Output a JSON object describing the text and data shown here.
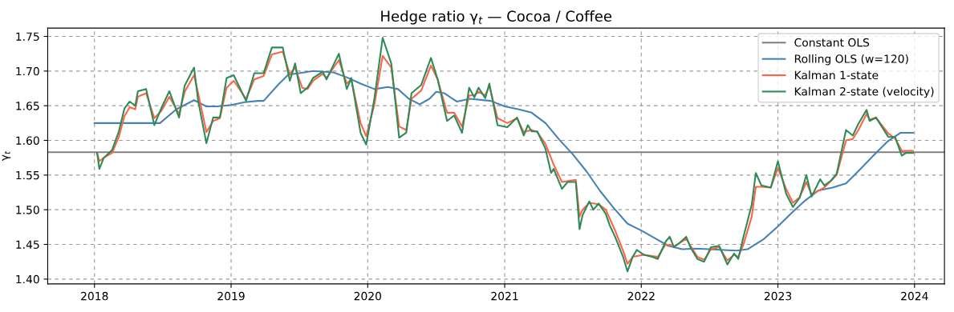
{
  "chart_data": {
    "type": "line",
    "title": "Hedge ratio γ$_{t}$ — Cocoa / Coffee",
    "ylabel": "γ$_{t}$",
    "xlim": [
      "2017-08-29",
      "2024-03-21"
    ],
    "ylim": [
      1.393,
      1.762
    ],
    "xticks": [
      {
        "value": "2018-01-01",
        "label": "2018"
      },
      {
        "value": "2019-01-01",
        "label": "2019"
      },
      {
        "value": "2020-01-01",
        "label": "2020"
      },
      {
        "value": "2021-01-01",
        "label": "2021"
      },
      {
        "value": "2022-01-01",
        "label": "2022"
      },
      {
        "value": "2023-01-01",
        "label": "2023"
      },
      {
        "value": "2024-01-01",
        "label": "2024"
      }
    ],
    "yticks": [
      {
        "value": 1.4,
        "label": "1.40"
      },
      {
        "value": 1.45,
        "label": "1.45"
      },
      {
        "value": 1.5,
        "label": "1.50"
      },
      {
        "value": 1.55,
        "label": "1.55"
      },
      {
        "value": 1.6,
        "label": "1.60"
      },
      {
        "value": 1.65,
        "label": "1.65"
      },
      {
        "value": 1.7,
        "label": "1.70"
      },
      {
        "value": 1.75,
        "label": "1.75"
      }
    ],
    "grid": true,
    "legend": "top right",
    "line_style": "solid",
    "marker": "none",
    "ref_lines": [
      {
        "axis": "y",
        "value": 1.583,
        "label": "Constant OLS",
        "color": "#808080"
      }
    ],
    "series": [
      {
        "name": "Rolling OLS (w=120)",
        "color": "#4682b4",
        "x": [
          "2018-01-01",
          "2018-06-25",
          "2018-08-08",
          "2018-09-24",
          "2018-10-27",
          "2018-11-25",
          "2019-01-01",
          "2019-02-06",
          "2019-03-14",
          "2019-03-29",
          "2019-05-08",
          "2019-06-03",
          "2019-07-02",
          "2019-08-08",
          "2019-10-01",
          "2019-11-06",
          "2019-12-13",
          "2020-01-19",
          "2020-02-24",
          "2020-03-22",
          "2020-04-20",
          "2020-05-19",
          "2020-06-14",
          "2020-07-02",
          "2020-07-24",
          "2020-08-26",
          "2020-10-01",
          "2020-11-25",
          "2021-01-01",
          "2021-02-06",
          "2021-03-14",
          "2021-04-20",
          "2021-05-27",
          "2021-07-02",
          "2021-08-08",
          "2021-09-13",
          "2021-10-20",
          "2021-11-25",
          "2022-01-01",
          "2022-02-06",
          "2022-03-14",
          "2022-04-20",
          "2022-05-27",
          "2022-07-02",
          "2022-08-08",
          "2022-09-13",
          "2022-10-12",
          "2022-11-25",
          "2023-01-01",
          "2023-02-06",
          "2023-03-14",
          "2023-04-20",
          "2023-05-27",
          "2023-07-02",
          "2023-08-08",
          "2023-09-13",
          "2023-10-20",
          "2023-11-25",
          "2023-12-28"
        ],
        "values": [
          1.625,
          1.625,
          1.645,
          1.658,
          1.649,
          1.649,
          1.651,
          1.655,
          1.657,
          1.657,
          1.681,
          1.695,
          1.697,
          1.7,
          1.698,
          1.691,
          1.682,
          1.674,
          1.677,
          1.674,
          1.66,
          1.652,
          1.66,
          1.67,
          1.668,
          1.656,
          1.66,
          1.657,
          1.649,
          1.645,
          1.64,
          1.625,
          1.601,
          1.58,
          1.555,
          1.527,
          1.502,
          1.48,
          1.47,
          1.459,
          1.448,
          1.443,
          1.444,
          1.443,
          1.442,
          1.441,
          1.443,
          1.458,
          1.476,
          1.495,
          1.513,
          1.528,
          1.532,
          1.538,
          1.558,
          1.578,
          1.598,
          1.611,
          1.611
        ]
      },
      {
        "name": "Kalman 1-state",
        "color": "#ff6347",
        "x": [
          "2018-01-08",
          "2018-01-14",
          "2018-01-26",
          "2018-02-17",
          "2018-03-07",
          "2018-03-22",
          "2018-04-05",
          "2018-04-20",
          "2018-04-27",
          "2018-05-19",
          "2018-06-10",
          "2018-06-29",
          "2018-07-20",
          "2018-08-15",
          "2018-08-30",
          "2018-09-24",
          "2018-10-05",
          "2018-10-27",
          "2018-11-14",
          "2018-12-02",
          "2018-12-20",
          "2019-01-08",
          "2019-02-10",
          "2019-03-04",
          "2019-03-29",
          "2019-04-20",
          "2019-05-19",
          "2019-06-07",
          "2019-06-21",
          "2019-07-10",
          "2019-07-24",
          "2019-08-08",
          "2019-09-03",
          "2019-09-13",
          "2019-10-16",
          "2019-11-06",
          "2019-11-18",
          "2019-12-13",
          "2019-12-28",
          "2020-01-19",
          "2020-02-10",
          "2020-03-04",
          "2020-03-25",
          "2020-04-13",
          "2020-04-27",
          "2020-05-23",
          "2020-06-18",
          "2020-07-06",
          "2020-07-31",
          "2020-08-19",
          "2020-09-09",
          "2020-09-28",
          "2020-10-12",
          "2020-10-23",
          "2020-11-10",
          "2020-11-21",
          "2020-12-13",
          "2021-01-08",
          "2021-02-03",
          "2021-02-21",
          "2021-03-14",
          "2021-03-29",
          "2021-04-20",
          "2021-05-12",
          "2021-06-03",
          "2021-07-10",
          "2021-07-20",
          "2021-07-28",
          "2021-08-15",
          "2021-09-09",
          "2021-09-28",
          "2021-10-23",
          "2021-11-14",
          "2021-11-25",
          "2021-12-09",
          "2022-01-08",
          "2022-02-14",
          "2022-03-07",
          "2022-03-29",
          "2022-05-01",
          "2022-05-31",
          "2022-06-18",
          "2022-07-06",
          "2022-07-28",
          "2022-08-19",
          "2022-09-06",
          "2022-09-17",
          "2022-10-01",
          "2022-10-23",
          "2022-11-03",
          "2022-11-18",
          "2022-12-13",
          "2023-01-01",
          "2023-01-23",
          "2023-02-10",
          "2023-02-28",
          "2023-03-18",
          "2023-04-01",
          "2023-05-05",
          "2023-06-07",
          "2023-07-02",
          "2023-07-20",
          "2023-08-04",
          "2023-08-26",
          "2023-09-03",
          "2023-09-20",
          "2023-10-23",
          "2023-11-10",
          "2023-11-28",
          "2023-12-28"
        ],
        "values": [
          1.582,
          1.57,
          1.575,
          1.582,
          1.605,
          1.635,
          1.648,
          1.645,
          1.663,
          1.668,
          1.632,
          1.643,
          1.663,
          1.638,
          1.67,
          1.694,
          1.668,
          1.612,
          1.628,
          1.632,
          1.676,
          1.686,
          1.66,
          1.688,
          1.693,
          1.724,
          1.728,
          1.695,
          1.705,
          1.676,
          1.674,
          1.686,
          1.696,
          1.69,
          1.716,
          1.682,
          1.688,
          1.625,
          1.606,
          1.652,
          1.722,
          1.705,
          1.62,
          1.615,
          1.66,
          1.672,
          1.708,
          1.688,
          1.64,
          1.64,
          1.62,
          1.665,
          1.665,
          1.67,
          1.665,
          1.678,
          1.632,
          1.625,
          1.632,
          1.612,
          1.615,
          1.612,
          1.595,
          1.565,
          1.54,
          1.543,
          1.49,
          1.5,
          1.51,
          1.508,
          1.5,
          1.47,
          1.44,
          1.422,
          1.432,
          1.435,
          1.432,
          1.45,
          1.447,
          1.458,
          1.432,
          1.428,
          1.443,
          1.446,
          1.427,
          1.435,
          1.432,
          1.45,
          1.49,
          1.533,
          1.533,
          1.532,
          1.56,
          1.53,
          1.51,
          1.518,
          1.54,
          1.522,
          1.532,
          1.55,
          1.6,
          1.602,
          1.615,
          1.638,
          1.63,
          1.633,
          1.61,
          1.603,
          1.585,
          1.585
        ]
      },
      {
        "name": "Kalman 2-state (velocity)",
        "color": "#2e8b57",
        "x": [
          "2018-01-08",
          "2018-01-14",
          "2018-01-26",
          "2018-02-17",
          "2018-03-07",
          "2018-03-22",
          "2018-04-05",
          "2018-04-20",
          "2018-04-27",
          "2018-05-19",
          "2018-06-10",
          "2018-06-29",
          "2018-07-20",
          "2018-08-15",
          "2018-08-30",
          "2018-09-24",
          "2018-10-05",
          "2018-10-27",
          "2018-11-14",
          "2018-12-02",
          "2018-12-20",
          "2019-01-08",
          "2019-02-10",
          "2019-03-04",
          "2019-03-29",
          "2019-04-20",
          "2019-05-19",
          "2019-06-07",
          "2019-06-21",
          "2019-07-06",
          "2019-07-24",
          "2019-08-08",
          "2019-09-03",
          "2019-09-13",
          "2019-10-16",
          "2019-11-06",
          "2019-11-18",
          "2019-12-13",
          "2019-12-28",
          "2020-01-19",
          "2020-02-10",
          "2020-03-04",
          "2020-03-25",
          "2020-04-13",
          "2020-04-27",
          "2020-05-23",
          "2020-06-18",
          "2020-07-06",
          "2020-07-31",
          "2020-08-19",
          "2020-09-09",
          "2020-09-28",
          "2020-10-12",
          "2020-10-23",
          "2020-11-10",
          "2020-11-21",
          "2020-12-13",
          "2021-01-08",
          "2021-02-03",
          "2021-02-21",
          "2021-03-04",
          "2021-03-14",
          "2021-03-29",
          "2021-04-20",
          "2021-05-05",
          "2021-05-12",
          "2021-06-03",
          "2021-06-18",
          "2021-07-10",
          "2021-07-20",
          "2021-07-28",
          "2021-08-15",
          "2021-08-26",
          "2021-09-09",
          "2021-09-28",
          "2021-10-09",
          "2021-10-23",
          "2021-11-14",
          "2021-11-25",
          "2021-12-09",
          "2021-12-20",
          "2022-01-08",
          "2022-01-30",
          "2022-02-14",
          "2022-03-07",
          "2022-03-18",
          "2022-03-29",
          "2022-04-13",
          "2022-05-01",
          "2022-05-12",
          "2022-05-31",
          "2022-06-18",
          "2022-07-06",
          "2022-07-28",
          "2022-08-19",
          "2022-09-06",
          "2022-09-17",
          "2022-10-01",
          "2022-10-23",
          "2022-11-03",
          "2022-11-18",
          "2022-12-13",
          "2023-01-01",
          "2023-01-23",
          "2023-02-10",
          "2023-02-28",
          "2023-03-18",
          "2023-04-01",
          "2023-04-24",
          "2023-05-05",
          "2023-05-23",
          "2023-06-07",
          "2023-07-02",
          "2023-07-20",
          "2023-08-04",
          "2023-08-26",
          "2023-09-03",
          "2023-09-20",
          "2023-10-23",
          "2023-11-10",
          "2023-11-28",
          "2023-12-09",
          "2023-12-28"
        ],
        "values": [
          1.582,
          1.559,
          1.575,
          1.586,
          1.613,
          1.646,
          1.656,
          1.65,
          1.671,
          1.674,
          1.622,
          1.647,
          1.671,
          1.633,
          1.679,
          1.705,
          1.657,
          1.596,
          1.633,
          1.633,
          1.69,
          1.694,
          1.657,
          1.697,
          1.697,
          1.734,
          1.734,
          1.686,
          1.711,
          1.668,
          1.676,
          1.69,
          1.699,
          1.688,
          1.725,
          1.674,
          1.69,
          1.611,
          1.594,
          1.661,
          1.748,
          1.711,
          1.604,
          1.611,
          1.668,
          1.68,
          1.719,
          1.688,
          1.628,
          1.636,
          1.611,
          1.676,
          1.662,
          1.676,
          1.661,
          1.682,
          1.622,
          1.619,
          1.633,
          1.607,
          1.622,
          1.613,
          1.613,
          1.588,
          1.553,
          1.559,
          1.53,
          1.54,
          1.54,
          1.472,
          1.492,
          1.512,
          1.5,
          1.509,
          1.494,
          1.477,
          1.461,
          1.431,
          1.411,
          1.432,
          1.442,
          1.435,
          1.432,
          1.429,
          1.454,
          1.461,
          1.446,
          1.452,
          1.461,
          1.446,
          1.429,
          1.425,
          1.446,
          1.448,
          1.421,
          1.437,
          1.429,
          1.461,
          1.507,
          1.553,
          1.535,
          1.532,
          1.57,
          1.523,
          1.504,
          1.517,
          1.55,
          1.519,
          1.544,
          1.535,
          1.542,
          1.552,
          1.615,
          1.607,
          1.624,
          1.644,
          1.628,
          1.633,
          1.605,
          1.605,
          1.578,
          1.582,
          1.582
        ]
      }
    ]
  }
}
